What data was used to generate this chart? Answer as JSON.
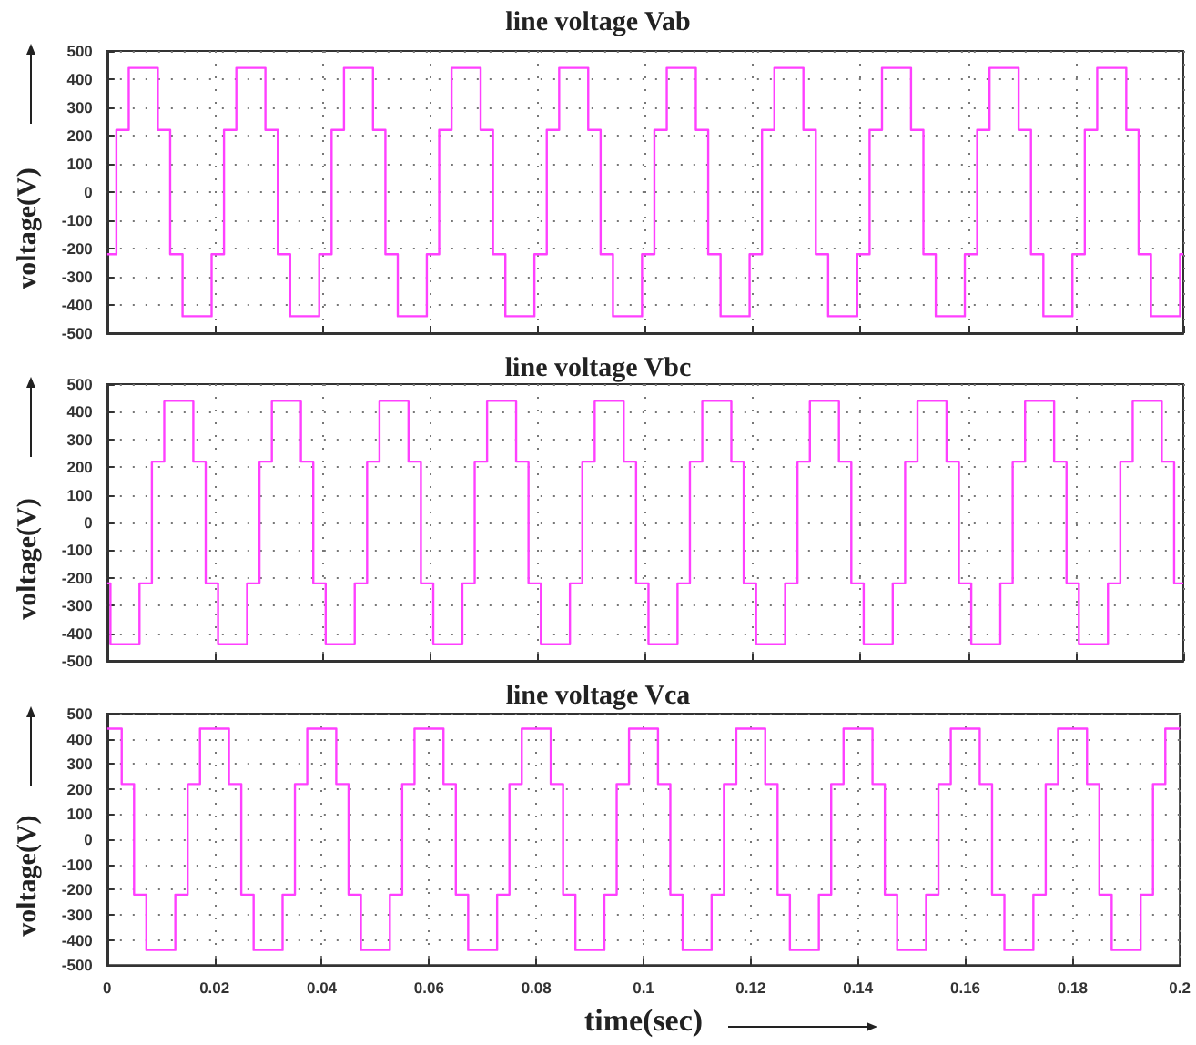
{
  "chart_data": [
    {
      "type": "step",
      "title": "line voltage Vab",
      "ylabel": "voltage(V)",
      "xlim": [
        0,
        0.2
      ],
      "xticks": [
        0,
        0.02,
        0.04,
        0.06,
        0.08,
        0.1,
        0.12,
        0.14,
        0.16,
        0.18,
        0.2
      ],
      "ylim": [
        -500,
        500
      ],
      "yticks": [
        -500,
        -400,
        -300,
        -200,
        -100,
        0,
        100,
        200,
        300,
        400,
        500
      ],
      "grid": true,
      "tick_labels": "y",
      "x": [
        0,
        0.0017,
        0.004,
        0.0094,
        0.0117,
        0.014,
        0.0194,
        0.0217,
        0.024,
        0.0294,
        0.0317,
        0.034,
        0.0394,
        0.0417,
        0.044,
        0.0494,
        0.0517,
        0.054,
        0.0594,
        0.0617,
        0.064,
        0.0694,
        0.0717,
        0.074,
        0.0794,
        0.0817,
        0.084,
        0.0894,
        0.0917,
        0.094,
        0.0994,
        0.1017,
        0.104,
        0.1094,
        0.1117,
        0.114,
        0.1194,
        0.1217,
        0.124,
        0.1294,
        0.1317,
        0.134,
        0.1394,
        0.1417,
        0.144,
        0.1494,
        0.1517,
        0.154,
        0.1594,
        0.1617,
        0.164,
        0.1694,
        0.1717,
        0.174,
        0.1794,
        0.1817,
        0.184,
        0.1894,
        0.1917,
        0.194,
        0.1994,
        0.2
      ],
      "series": [
        {
          "color": "#ff40ff",
          "values": [
            -220,
            220,
            440,
            220,
            -220,
            -440,
            -220,
            220,
            440,
            220,
            -220,
            -440,
            -220,
            220,
            440,
            220,
            -220,
            -440,
            -220,
            220,
            440,
            220,
            -220,
            -440,
            -220,
            220,
            440,
            220,
            -220,
            -440,
            -220,
            220,
            440,
            220,
            -220,
            -440,
            -220,
            220,
            440,
            220,
            -220,
            -440,
            -220,
            220,
            440,
            220,
            -220,
            -440,
            -220,
            220,
            440,
            220,
            -220,
            -440,
            -220,
            220,
            440,
            220,
            -220,
            -440,
            -220,
            -220
          ]
        }
      ]
    },
    {
      "type": "step",
      "title": "line voltage Vbc",
      "ylabel": "voltage(V)",
      "xlim": [
        0,
        0.2
      ],
      "xticks": [
        0,
        0.02,
        0.04,
        0.06,
        0.08,
        0.1,
        0.12,
        0.14,
        0.16,
        0.18,
        0.2
      ],
      "ylim": [
        -500,
        500
      ],
      "yticks": [
        -500,
        -400,
        -300,
        -200,
        -100,
        0,
        100,
        200,
        300,
        400,
        500
      ],
      "grid": true,
      "tick_labels": "y",
      "x": [
        0,
        0.0006,
        0.006,
        0.0083,
        0.0106,
        0.016,
        0.0183,
        0.0206,
        0.026,
        0.0283,
        0.0306,
        0.036,
        0.0383,
        0.0406,
        0.046,
        0.0483,
        0.0506,
        0.056,
        0.0583,
        0.0606,
        0.066,
        0.0683,
        0.0706,
        0.076,
        0.0783,
        0.0806,
        0.086,
        0.0883,
        0.0906,
        0.096,
        0.0983,
        0.1006,
        0.106,
        0.1083,
        0.1106,
        0.116,
        0.1183,
        0.1206,
        0.126,
        0.1283,
        0.1306,
        0.136,
        0.1383,
        0.1406,
        0.146,
        0.1483,
        0.1506,
        0.156,
        0.1583,
        0.1606,
        0.166,
        0.1683,
        0.1706,
        0.176,
        0.1783,
        0.1806,
        0.186,
        0.1883,
        0.1906,
        0.196,
        0.1983,
        0.2
      ],
      "series": [
        {
          "color": "#ff40ff",
          "values": [
            -220,
            -440,
            -220,
            220,
            440,
            220,
            -220,
            -440,
            -220,
            220,
            440,
            220,
            -220,
            -440,
            -220,
            220,
            440,
            220,
            -220,
            -440,
            -220,
            220,
            440,
            220,
            -220,
            -440,
            -220,
            220,
            440,
            220,
            -220,
            -440,
            -220,
            220,
            440,
            220,
            -220,
            -440,
            -220,
            220,
            440,
            220,
            -220,
            -440,
            -220,
            220,
            440,
            220,
            -220,
            -440,
            -220,
            220,
            440,
            220,
            -220,
            -440,
            -220,
            220,
            440,
            220,
            -220,
            -220
          ]
        }
      ]
    },
    {
      "type": "step",
      "title": "line voltage Vca",
      "xlabel": "time(sec)",
      "ylabel": "voltage(V)",
      "xlim": [
        0,
        0.2
      ],
      "xticks": [
        0,
        0.02,
        0.04,
        0.06,
        0.08,
        0.1,
        0.12,
        0.14,
        0.16,
        0.18,
        0.2
      ],
      "ylim": [
        -500,
        500
      ],
      "yticks": [
        -500,
        -400,
        -300,
        -200,
        -100,
        0,
        100,
        200,
        300,
        400,
        500
      ],
      "grid": true,
      "x": [
        0,
        0.0027,
        0.005,
        0.0073,
        0.0127,
        0.015,
        0.0173,
        0.0227,
        0.025,
        0.0273,
        0.0327,
        0.035,
        0.0373,
        0.0427,
        0.045,
        0.0473,
        0.0527,
        0.055,
        0.0573,
        0.0627,
        0.065,
        0.0673,
        0.0727,
        0.075,
        0.0773,
        0.0827,
        0.085,
        0.0873,
        0.0927,
        0.095,
        0.0973,
        0.1027,
        0.105,
        0.1073,
        0.1127,
        0.115,
        0.1173,
        0.1227,
        0.125,
        0.1273,
        0.1327,
        0.135,
        0.1373,
        0.1427,
        0.145,
        0.1473,
        0.1527,
        0.155,
        0.1573,
        0.1627,
        0.165,
        0.1673,
        0.1727,
        0.175,
        0.1773,
        0.1827,
        0.185,
        0.1873,
        0.1927,
        0.195,
        0.1973,
        0.2
      ],
      "series": [
        {
          "color": "#ff40ff",
          "values": [
            440,
            220,
            -220,
            -440,
            -220,
            220,
            440,
            220,
            -220,
            -440,
            -220,
            220,
            440,
            220,
            -220,
            -440,
            -220,
            220,
            440,
            220,
            -220,
            -440,
            -220,
            220,
            440,
            220,
            -220,
            -440,
            -220,
            220,
            440,
            220,
            -220,
            -440,
            -220,
            220,
            440,
            220,
            -220,
            -440,
            -220,
            220,
            440,
            220,
            -220,
            -440,
            -220,
            220,
            440,
            220,
            -220,
            -440,
            -220,
            220,
            440,
            220,
            -220,
            -440,
            -220,
            220,
            440,
            440
          ]
        }
      ]
    }
  ]
}
